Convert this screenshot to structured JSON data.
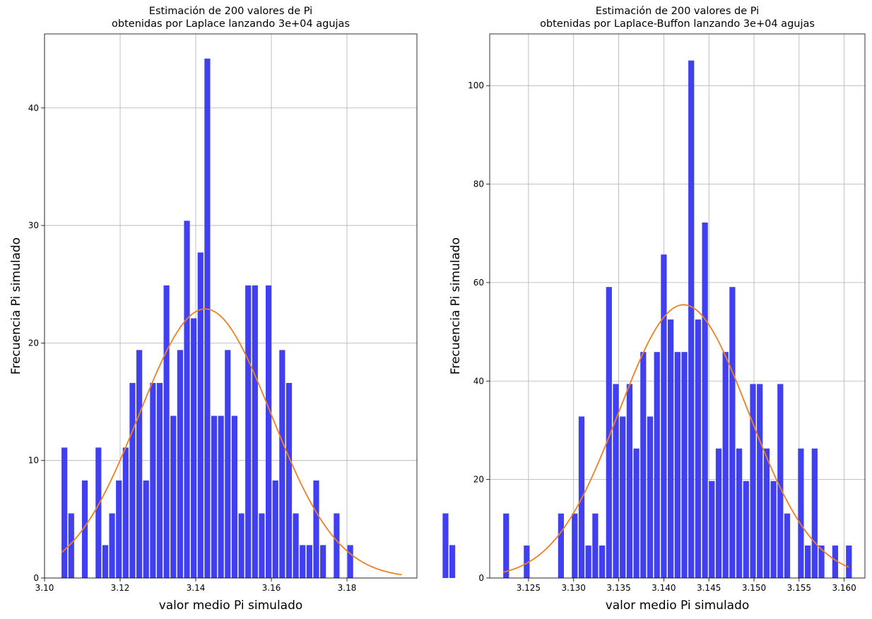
{
  "chart_data": [
    {
      "type": "bar",
      "title": "Estimación de 200 valores de Pi\nobtenidas por Laplace lanzando 3e+04 agujas",
      "xlabel": "valor medio Pi simulado",
      "ylabel": "Frecuencia Pi simulado",
      "xlim": [
        3.1,
        3.1985
      ],
      "ylim": [
        0,
        46.3
      ],
      "xticks": [
        3.1,
        3.12,
        3.14,
        3.16,
        3.18
      ],
      "xtick_labels": [
        "3.10",
        "3.12",
        "3.14",
        "3.16",
        "3.18"
      ],
      "yticks": [
        0,
        10,
        20,
        30,
        40
      ],
      "ytick_labels": [
        "0",
        "10",
        "20",
        "30",
        "40"
      ],
      "grid": true,
      "bar_color": "#4040f0",
      "curve_color": "#f07f20",
      "bin_start": 3.1045,
      "bin_width": 0.0018,
      "bar_width_ratio": 0.85,
      "values": [
        11.1,
        5.5,
        0,
        8.3,
        0,
        11.1,
        2.8,
        5.5,
        8.3,
        11.1,
        16.6,
        19.4,
        8.3,
        16.6,
        16.6,
        24.9,
        13.8,
        19.4,
        30.4,
        22.1,
        27.7,
        44.2,
        13.8,
        13.8,
        19.4,
        13.8,
        5.5,
        24.9,
        24.9,
        5.5,
        24.9,
        8.3,
        19.4,
        16.6,
        5.5,
        2.8,
        2.8,
        8.3,
        2.8,
        0,
        5.5,
        0,
        2.8,
        0,
        0,
        0,
        0,
        0,
        0,
        0,
        0,
        0,
        0,
        0,
        0,
        0,
        5.5,
        2.8
      ],
      "curve": {
        "mu": 3.1425,
        "sigma": 0.0175,
        "peak": 22.9,
        "x_start": 3.1045,
        "x_end": 3.1945
      }
    },
    {
      "type": "bar",
      "title": "Estimación de 200 valores de Pi\nobtenidas por Laplace-Buffon lanzando 3e+04 agujas",
      "xlabel": "valor medio Pi simulado",
      "ylabel": "Frecuencia Pi simulado",
      "xlim": [
        3.1207,
        3.1623
      ],
      "ylim": [
        0,
        110.5
      ],
      "xticks": [
        3.125,
        3.13,
        3.135,
        3.14,
        3.145,
        3.15,
        3.155,
        3.16
      ],
      "xtick_labels": [
        "3.125",
        "3.130",
        "3.135",
        "3.140",
        "3.145",
        "3.150",
        "3.155",
        "3.160"
      ],
      "yticks": [
        0,
        20,
        40,
        60,
        80,
        100
      ],
      "ytick_labels": [
        "0",
        "20",
        "40",
        "60",
        "80",
        "100"
      ],
      "grid": true,
      "bar_color": "#4040f0",
      "curve_color": "#f07f20",
      "bin_start": 3.1222,
      "bin_width": 0.00076,
      "bar_width_ratio": 0.85,
      "values": [
        13.1,
        0,
        0,
        6.6,
        0,
        0,
        0,
        0,
        13.1,
        0,
        13.1,
        32.8,
        6.6,
        13.1,
        6.6,
        59.1,
        39.4,
        32.8,
        39.4,
        26.3,
        45.9,
        32.8,
        45.9,
        65.7,
        52.5,
        45.9,
        45.9,
        105.1,
        52.5,
        72.2,
        19.7,
        26.3,
        45.9,
        59.1,
        26.3,
        19.7,
        39.4,
        39.4,
        26.3,
        19.7,
        39.4,
        13.1,
        0,
        26.3,
        6.6,
        26.3,
        6.6,
        0,
        6.6,
        0,
        6.6
      ],
      "curve": {
        "mu": 3.1422,
        "sigma": 0.0072,
        "peak": 55.5,
        "x_start": 3.1222,
        "x_end": 3.1605
      }
    }
  ]
}
